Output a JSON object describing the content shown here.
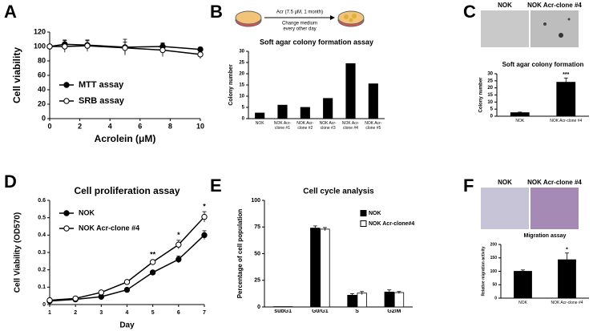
{
  "chart_data": [
    {
      "panel": "A",
      "type": "line",
      "xlabel": "Acrolein (μM)",
      "ylabel": "Cell viability",
      "x": [
        0,
        1,
        2.5,
        5,
        7.5,
        10
      ],
      "xlim": [
        0,
        10
      ],
      "xticks": [
        0,
        2,
        4,
        6,
        8,
        10
      ],
      "ylim": [
        0,
        120
      ],
      "yticks": [
        0,
        20,
        40,
        60,
        80,
        100,
        120
      ],
      "legend": "lower left",
      "series": [
        {
          "name": "MTT assay",
          "color": "#000000",
          "values": [
            100,
            103,
            102,
            99,
            100,
            96
          ],
          "errors": [
            2,
            6,
            6,
            11,
            5,
            3
          ]
        },
        {
          "name": "SRB assay",
          "color": "#ffffff",
          "values": [
            100,
            100,
            101,
            98,
            95,
            89
          ],
          "errors": [
            2,
            8,
            8,
            8,
            9,
            6
          ]
        }
      ]
    },
    {
      "panel": "B",
      "type": "bar",
      "title": "Soft agar colony formation assay",
      "ylabel": "Colony number",
      "diagram_labels": [
        "Acr (7.5 μM, 1 month)",
        "Change medium",
        "every other day"
      ],
      "categories": [
        "NOK",
        "NOK Acr-clone #1",
        "NOK Acr-clone #2",
        "NOK Acr-clone #3",
        "NOK Acr-clone #4",
        "NOK Acr-clone #5"
      ],
      "values": [
        2.5,
        6,
        5,
        9,
        24.5,
        15.5
      ],
      "color": "#000000",
      "ylim": [
        0,
        30
      ],
      "yticks": [
        0,
        5,
        10,
        15,
        20,
        25,
        30
      ]
    },
    {
      "panel": "C",
      "type": "bar",
      "title": "Soft agar colony formation",
      "ylabel": "Colony number",
      "image_labels": [
        "NOK",
        "NOK Acr-clone #4"
      ],
      "categories": [
        "NOK",
        "NOK Acr-clone #4"
      ],
      "values": [
        2.5,
        24
      ],
      "errors": [
        0.4,
        3
      ],
      "color": "#000000",
      "ylim": [
        0,
        30
      ],
      "yticks": [
        0,
        5,
        10,
        15,
        20,
        25,
        30
      ],
      "annotations": [
        {
          "text": "***",
          "category": "NOK Acr-clone #4"
        }
      ]
    },
    {
      "panel": "D",
      "type": "line",
      "title": "Cell proliferation assay",
      "xlabel": "Day",
      "ylabel": "Cell Viability (OD570)",
      "x": [
        1,
        2,
        3,
        4,
        5,
        6,
        7
      ],
      "xlim": [
        1,
        7
      ],
      "xticks": [
        1,
        2,
        3,
        4,
        5,
        6,
        7
      ],
      "ylim": [
        0,
        0.6
      ],
      "yticks": [
        0,
        0.1,
        0.2,
        0.3,
        0.4,
        0.5,
        0.6
      ],
      "legend": "upper left",
      "series": [
        {
          "name": "NOK",
          "color": "#000000",
          "values": [
            0.02,
            0.03,
            0.045,
            0.085,
            0.185,
            0.26,
            0.4
          ],
          "errors": [
            0.003,
            0.004,
            0.005,
            0.008,
            0.01,
            0.02,
            0.025
          ]
        },
        {
          "name": "NOK Acr-clone #4",
          "color": "#ffffff",
          "values": [
            0.025,
            0.035,
            0.07,
            0.13,
            0.245,
            0.345,
            0.505
          ],
          "errors": [
            0.003,
            0.004,
            0.006,
            0.01,
            0.012,
            0.025,
            0.03
          ]
        }
      ],
      "annotations": [
        {
          "text": "**",
          "x": 5
        },
        {
          "text": "*",
          "x": 6
        },
        {
          "text": "*",
          "x": 7
        }
      ]
    },
    {
      "panel": "E",
      "type": "bar",
      "title": "Cell cycle analysis",
      "ylabel": "Percentage of cell population",
      "categories": [
        "subG1",
        "G0/G1",
        "S",
        "G2/M"
      ],
      "ylim": [
        0,
        100
      ],
      "yticks": [
        0,
        25,
        50,
        75,
        100
      ],
      "legend": "upper right",
      "series": [
        {
          "name": "NOK",
          "color": "#000000",
          "values": [
            0.3,
            74,
            11,
            14
          ],
          "errors": [
            0,
            2,
            1.5,
            2
          ]
        },
        {
          "name": "NOK Acr-clone#4",
          "color": "#ffffff",
          "values": [
            0.3,
            73,
            13,
            13.5
          ],
          "errors": [
            0,
            1.5,
            1.5,
            1
          ]
        }
      ]
    },
    {
      "panel": "F",
      "type": "bar",
      "title": "Migration assay",
      "ylabel": "Relative migration activity",
      "image_labels": [
        "NOK",
        "NOK Acr-clone #4"
      ],
      "categories": [
        "NOK",
        "NOK Acr-clone #4"
      ],
      "values": [
        100,
        143
      ],
      "errors": [
        5,
        25
      ],
      "color": "#000000",
      "ylim": [
        0,
        200
      ],
      "yticks": [
        0,
        50,
        100,
        150,
        200
      ],
      "annotations": [
        {
          "text": "*",
          "category": "NOK Acr-clone #4"
        }
      ]
    }
  ]
}
